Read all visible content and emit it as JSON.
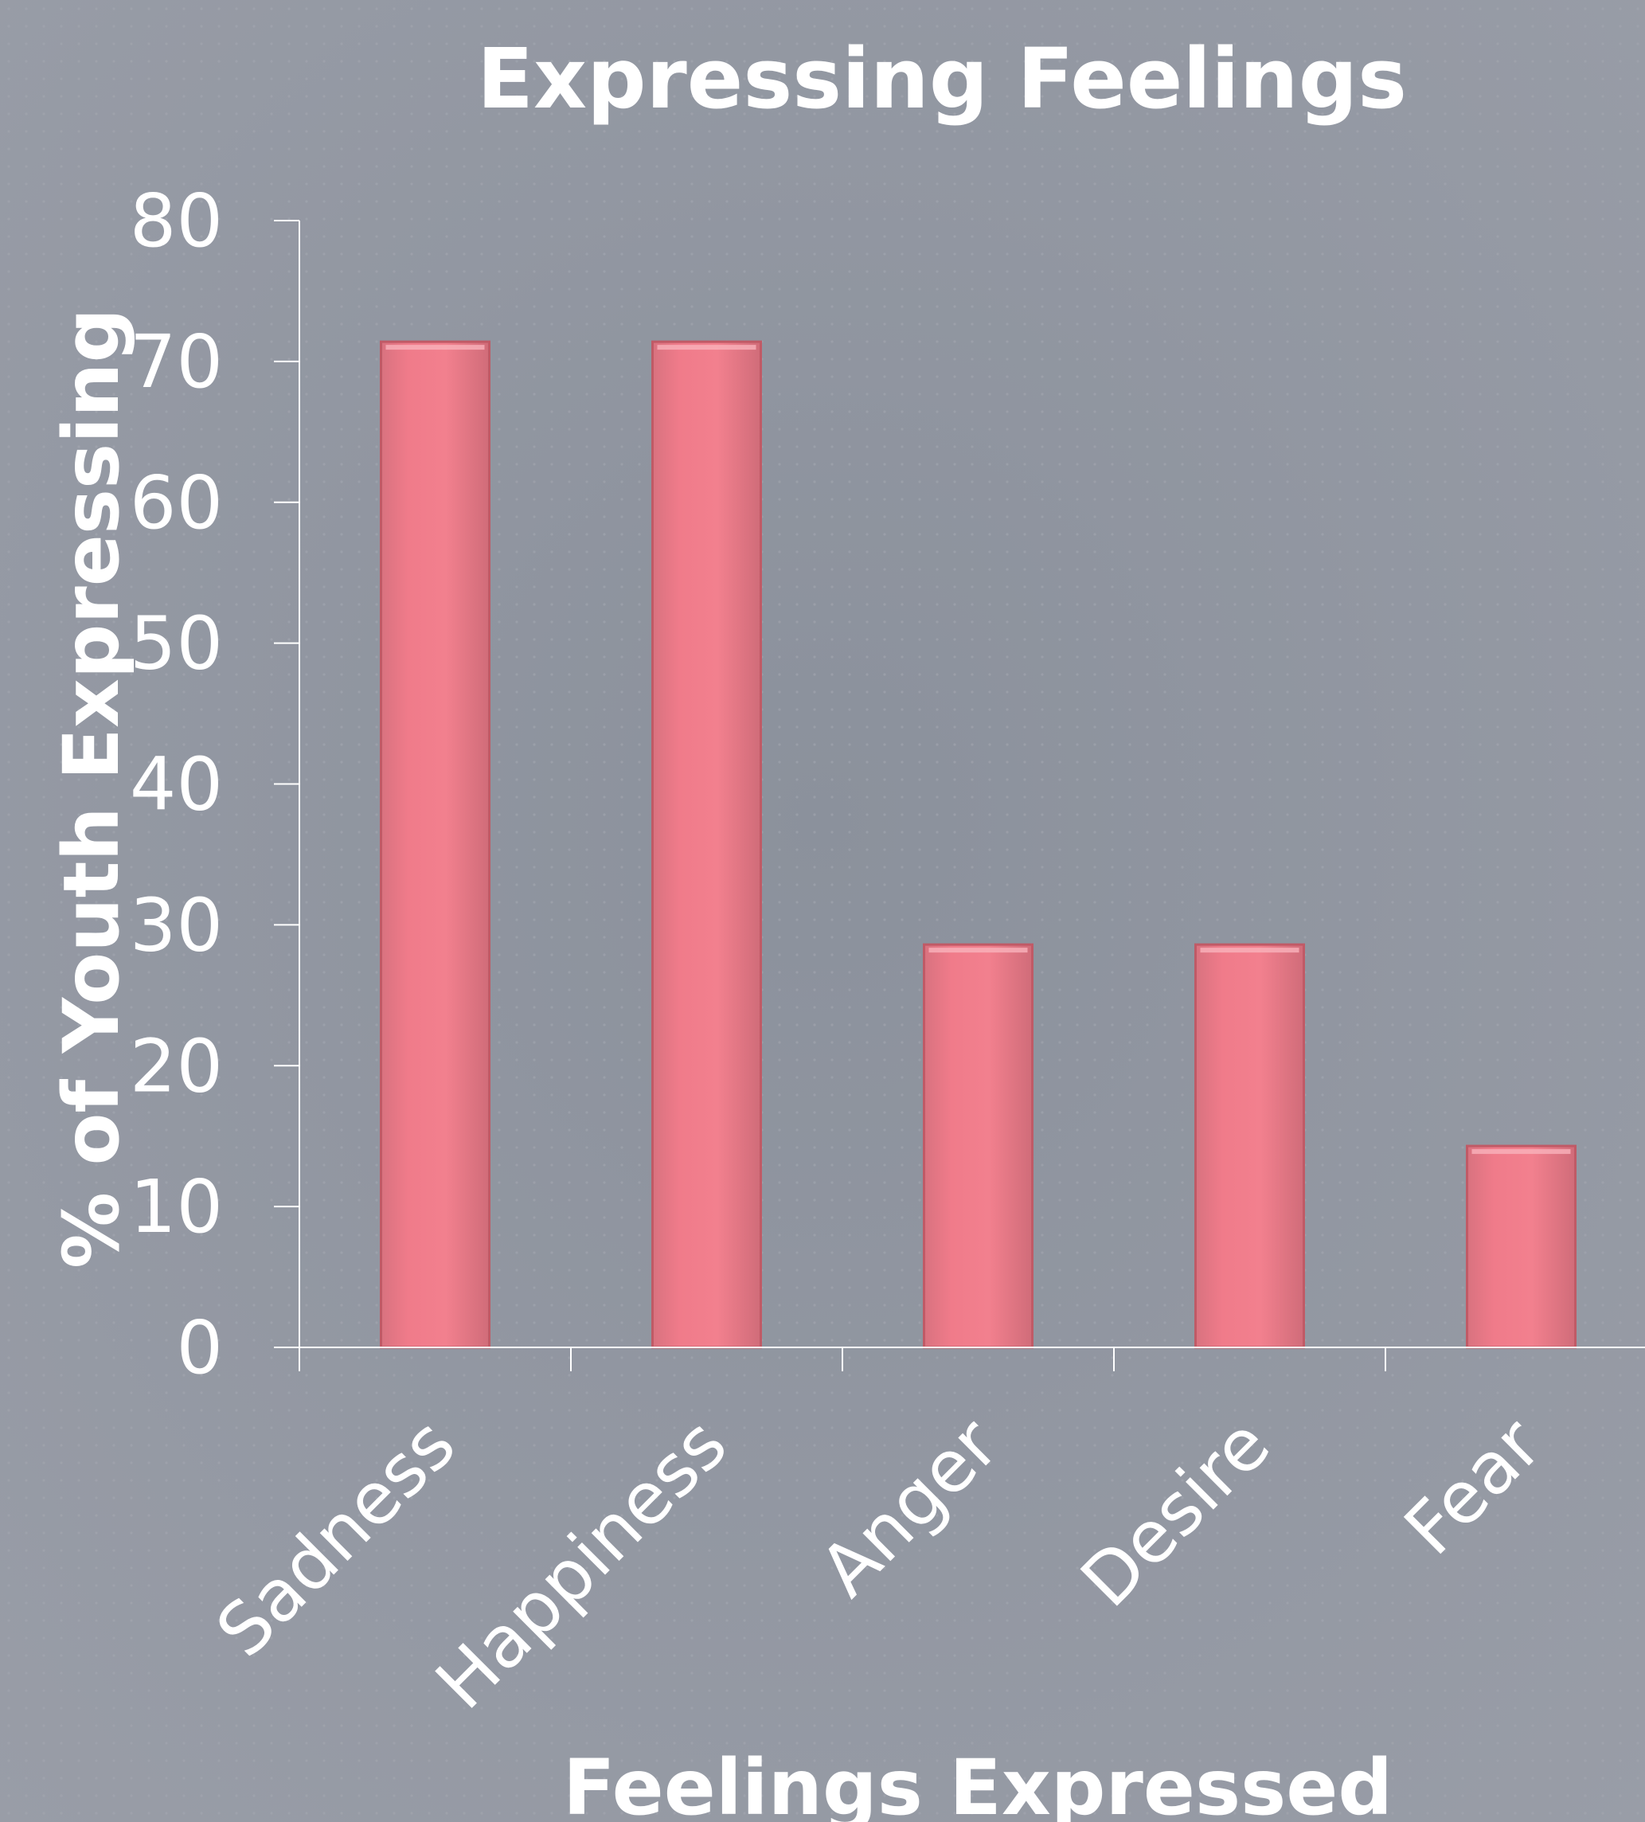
{
  "chart_data": {
    "type": "bar",
    "title": "Expressing Feelings",
    "xlabel": "Feelings Expressed",
    "ylabel": "% of Youth Expressing",
    "categories": [
      "Sadness",
      "Happiness",
      "Anger",
      "Desire",
      "Fear"
    ],
    "values": [
      71.4,
      71.4,
      28.6,
      28.6,
      14.3
    ],
    "ylim": [
      0,
      80
    ],
    "yticks": [
      "0",
      "10",
      "20",
      "30",
      "40",
      "50",
      "60",
      "70",
      "80"
    ],
    "grid": false,
    "legend": "none",
    "colors": {
      "bar": "#f07a88",
      "bar_edge": "#c05a66",
      "background": "#8a909b",
      "axis": "#ffffff",
      "text": "#ffffff"
    }
  }
}
